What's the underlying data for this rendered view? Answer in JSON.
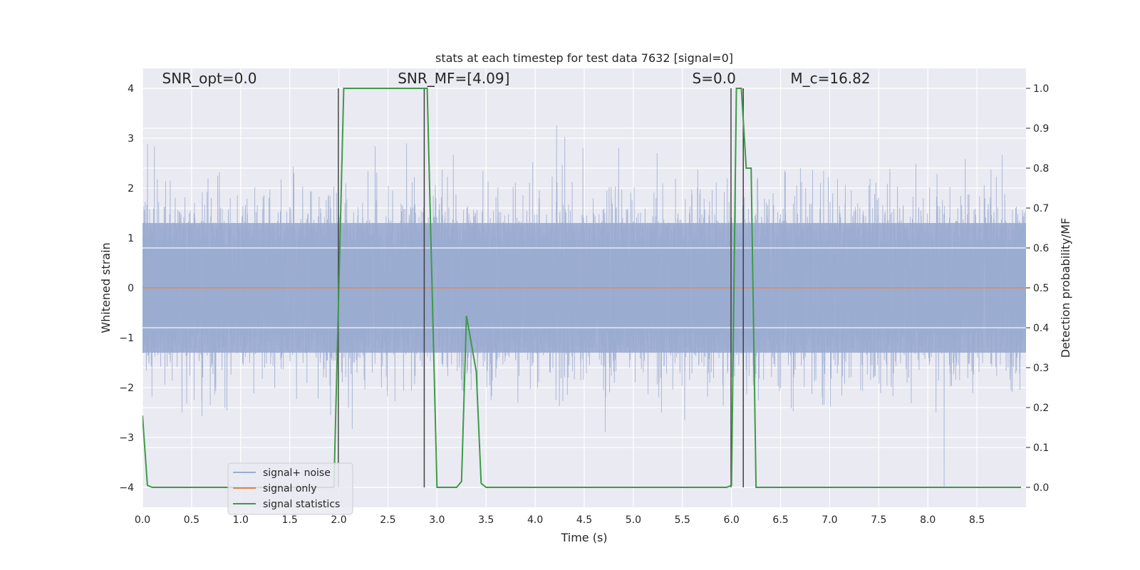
{
  "chart_data": {
    "type": "line",
    "title": "stats at each timestep for test data 7632 [signal=0]",
    "xlabel": "Time (s)",
    "ylabel_left": "Whitened strain",
    "ylabel_right": "Detection probability/MF",
    "xlim": [
      0.0,
      9.0
    ],
    "ylim_left": [
      -4.4,
      4.4
    ],
    "ylim_right": [
      -0.05,
      1.05
    ],
    "x_ticks": [
      "0.0",
      "0.5",
      "1.0",
      "1.5",
      "2.0",
      "2.5",
      "3.0",
      "3.5",
      "4.0",
      "4.5",
      "5.0",
      "5.5",
      "6.0",
      "6.5",
      "7.0",
      "7.5",
      "8.0",
      "8.5"
    ],
    "y_ticks_left": [
      "4",
      "3",
      "2",
      "1",
      "0",
      "−1",
      "−2",
      "−3",
      "−4"
    ],
    "y_ticks_right": [
      "1.0",
      "0.9",
      "0.8",
      "0.7",
      "0.6",
      "0.5",
      "0.4",
      "0.3",
      "0.2",
      "0.1",
      "0.0"
    ],
    "grid": true,
    "legend_position": "lower-left",
    "annotations": [
      {
        "name": "snr-opt",
        "text": "SNR_opt=0.0",
        "x": 0.2,
        "y": 4.1
      },
      {
        "name": "snr-mf",
        "text": "SNR_MF=[4.09]",
        "x": 2.6,
        "y": 4.1
      },
      {
        "name": "s-value",
        "text": "S=0.0",
        "x": 5.6,
        "y": 4.1
      },
      {
        "name": "mc-value",
        "text": "M_c=16.82",
        "x": 6.6,
        "y": 4.1
      }
    ],
    "series": [
      {
        "name": "signal+ noise",
        "color": "#9aabd0",
        "noise_envelope": {
          "x_start": 0.0,
          "x_end": 9.0,
          "core_amplitude": 1.3,
          "peak_range": [
            -4.0,
            4.0
          ]
        }
      },
      {
        "name": "signal only",
        "color": "#dd8452",
        "x": [
          0.0,
          9.0
        ],
        "y": [
          0.0,
          0.0
        ]
      },
      {
        "name": "signal statistics",
        "color": "#3e9a47",
        "axis": "right",
        "x": [
          0.0,
          0.05,
          0.1,
          0.5,
          1.0,
          1.5,
          1.95,
          2.0,
          2.05,
          2.5,
          2.85,
          2.9,
          2.95,
          3.0,
          3.2,
          3.25,
          3.3,
          3.4,
          3.45,
          3.5,
          4.0,
          5.0,
          5.95,
          6.0,
          6.05,
          6.1,
          6.15,
          6.2,
          6.25,
          6.5,
          7.0,
          8.0,
          8.95
        ],
        "y": [
          0.18,
          0.005,
          0.0,
          0.0,
          0.0,
          0.0,
          0.0,
          0.5,
          1.0,
          1.0,
          1.0,
          1.0,
          0.5,
          0.0,
          0.0,
          0.015,
          0.43,
          0.29,
          0.01,
          0.0,
          0.0,
          0.0,
          0.0,
          0.005,
          1.0,
          1.0,
          0.8,
          0.8,
          0.0,
          0.0,
          0.0,
          0.0,
          0.0
        ]
      }
    ],
    "vertical_lines": [
      {
        "x": 1.995,
        "y_from": -4.0,
        "y_to": 4.0,
        "color": "#404040"
      },
      {
        "x": 2.87,
        "y_from": -4.0,
        "y_to": 4.0,
        "color": "#404040"
      },
      {
        "x": 5.995,
        "y_from": -4.0,
        "y_to": 4.0,
        "color": "#404040"
      },
      {
        "x": 6.12,
        "y_from": -4.0,
        "y_to": 4.0,
        "color": "#404040"
      }
    ]
  }
}
